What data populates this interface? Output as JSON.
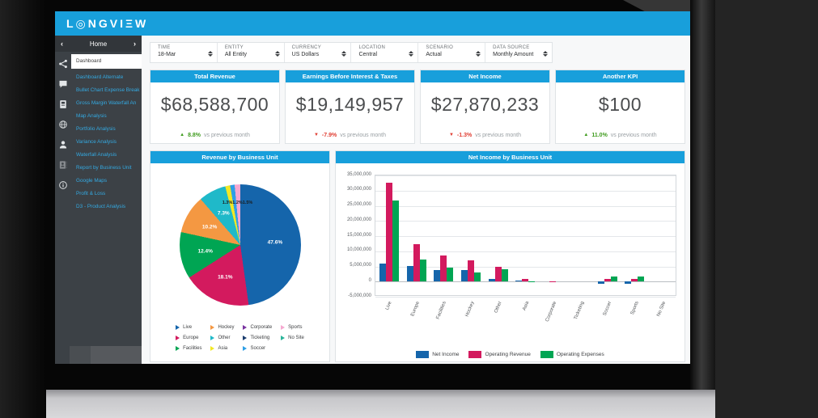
{
  "app": {
    "logo": "L◎NGVIΞW"
  },
  "sidebar": {
    "home_label": "Home",
    "prev_icon": "‹",
    "next_icon": "›",
    "icons": [
      "share-icon",
      "chat-icon",
      "book-icon",
      "globe-icon",
      "user-icon",
      "contacts-icon",
      "info-icon"
    ],
    "items": [
      {
        "label": "Dashboard",
        "selected": true
      },
      {
        "label": "Dashboard Alternate",
        "selected": false
      },
      {
        "label": "Bullet Chart Expense Break",
        "selected": false
      },
      {
        "label": "Gross Margin Waterfall An",
        "selected": false
      },
      {
        "label": "Map Analysis",
        "selected": false
      },
      {
        "label": "Portfolio Analysis",
        "selected": false
      },
      {
        "label": "Variance Analysis",
        "selected": false
      },
      {
        "label": "Waterfall Analysis",
        "selected": false
      },
      {
        "label": "Report by Business Unit",
        "selected": false
      },
      {
        "label": "Google Maps",
        "selected": false
      },
      {
        "label": "Profit & Loss",
        "selected": false
      },
      {
        "label": "D3 - Product Analysis",
        "selected": false
      }
    ]
  },
  "filters": [
    {
      "label": "TIME",
      "value": "18-Mar"
    },
    {
      "label": "ENTITY",
      "value": "All Entity"
    },
    {
      "label": "CURRENCY",
      "value": "US Dollars"
    },
    {
      "label": "LOCATION",
      "value": "Central"
    },
    {
      "label": "SCENARIO",
      "value": "Actual"
    },
    {
      "label": "DATA SOURCE",
      "value": "Monthly Amount"
    }
  ],
  "kpis": [
    {
      "title": "Total Revenue",
      "value": "$68,588,700",
      "change": "8.8%",
      "direction": "up",
      "note": "vs previous month"
    },
    {
      "title": "Earnings Before Interest & Taxes",
      "value": "$19,149,957",
      "change": "-7.9%",
      "direction": "down",
      "note": "vs previous month"
    },
    {
      "title": "Net Income",
      "value": "$27,870,233",
      "change": "-1.3%",
      "direction": "down",
      "note": "vs previous month"
    },
    {
      "title": "Another KPI",
      "value": "$100",
      "change": "11.0%",
      "direction": "up",
      "note": "vs previous month"
    }
  ],
  "colors": {
    "accent_blue": "#189fdb",
    "positive_green": "#3f9b1e",
    "negative_red": "#e03c31",
    "sidebar_dark": "#3c4146",
    "link_blue": "#34a9e1"
  },
  "chart_data": [
    {
      "type": "pie",
      "title": "Revenue by Business Unit",
      "labels": [
        "Live",
        "Europe",
        "Facilities",
        "Hockey",
        "Other",
        "Asia",
        "Corporate",
        "Ticketing",
        "Soccer",
        "Sports",
        "No Site"
      ],
      "values": [
        47.6,
        18.1,
        12.4,
        10.2,
        7.3,
        1.3,
        0,
        0,
        1.2,
        1.5,
        0
      ],
      "unit": "%",
      "colors": [
        "#1565ab",
        "#d31a5e",
        "#00a553",
        "#f49842",
        "#1fb9c9",
        "#f2e824",
        "#7a34a0",
        "#1b3d6e",
        "#2e9fe6",
        "#f6a8d0",
        "#2bb59a"
      ],
      "legend_position": "bottom"
    },
    {
      "type": "bar",
      "title": "Net Income by Business Unit",
      "categories": [
        "Live",
        "Europe",
        "Facilities",
        "Hockey",
        "Other",
        "Asia",
        "Corporate",
        "Ticketing",
        "Soccer",
        "Sports",
        "No Site"
      ],
      "series": [
        {
          "name": "Net Income",
          "color": "#1565ab",
          "values": [
            6000000,
            5200000,
            3900000,
            3900000,
            800000,
            400000,
            0,
            0,
            -600000,
            -700000,
            0
          ]
        },
        {
          "name": "Operating Revenue",
          "color": "#d31a5e",
          "values": [
            32500000,
            12400000,
            8500000,
            7000000,
            5000000,
            800000,
            200000,
            0,
            1000000,
            900000,
            0
          ]
        },
        {
          "name": "Operating Expenses",
          "color": "#00a553",
          "values": [
            26700000,
            7200000,
            4600000,
            3100000,
            4100000,
            200000,
            0,
            0,
            1600000,
            1600000,
            0
          ]
        }
      ],
      "ylim": [
        -5000000,
        35000000
      ],
      "ytick_step": 5000000,
      "grid": true,
      "legend_position": "bottom"
    }
  ]
}
